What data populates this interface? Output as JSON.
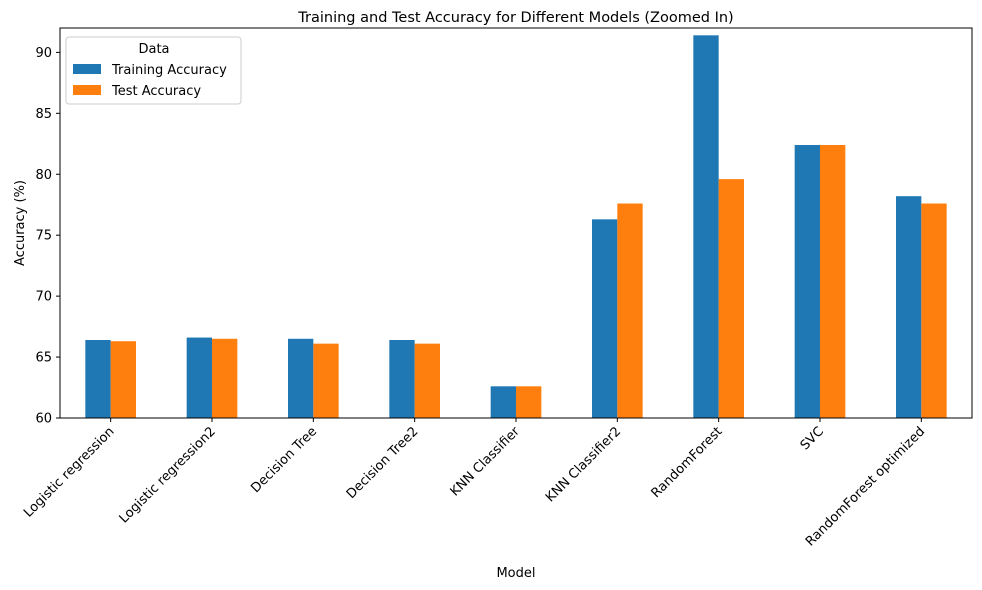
{
  "chart_data": {
    "type": "bar",
    "title": "Training and Test Accuracy for Different Models (Zoomed In)",
    "xlabel": "Model",
    "ylabel": "Accuracy (%)",
    "ylim": [
      60,
      92
    ],
    "yticks": [
      60,
      65,
      70,
      75,
      80,
      85,
      90
    ],
    "grid": false,
    "legend": {
      "title": "Data",
      "placement": "top-left"
    },
    "categories": [
      "Logistic regression",
      "Logistic regression2",
      "Decision Tree",
      "Decision Tree2",
      "KNN Classifier",
      "KNN Classifier2",
      "RandomForest",
      "SVC",
      "RandomForest optimized"
    ],
    "series": [
      {
        "name": "Training Accuracy",
        "color": "#1f77b4",
        "values": [
          66.4,
          66.6,
          66.5,
          66.4,
          62.6,
          76.3,
          91.4,
          82.4,
          78.2
        ]
      },
      {
        "name": "Test Accuracy",
        "color": "#ff7f0e",
        "values": [
          66.3,
          66.5,
          66.1,
          66.1,
          62.6,
          77.6,
          79.6,
          82.4,
          77.6
        ]
      }
    ]
  }
}
